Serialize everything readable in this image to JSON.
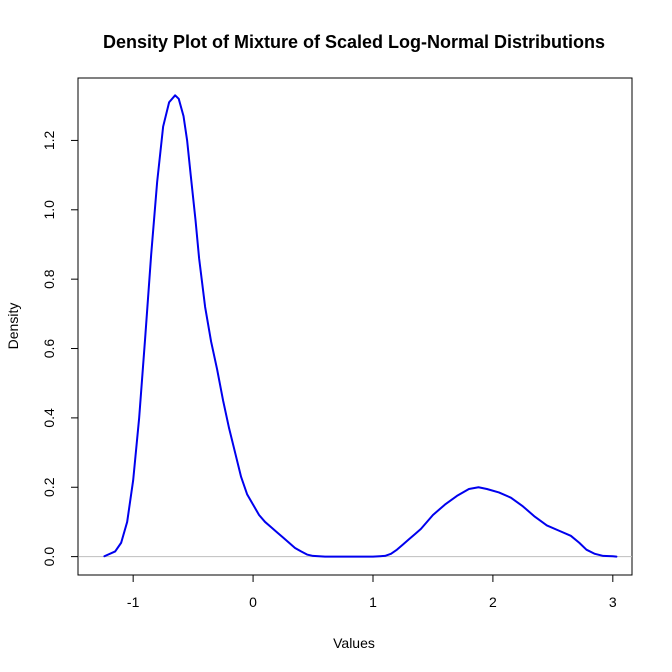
{
  "chart_data": {
    "type": "line",
    "title": "Density Plot of Mixture of Scaled Log-Normal Distributions",
    "xlabel": "Values",
    "ylabel": "Density",
    "xlim": [
      -1.46,
      3.16
    ],
    "ylim": [
      -0.053,
      1.38
    ],
    "x_ticks": [
      -1,
      0,
      1,
      2,
      3
    ],
    "y_ticks": [
      0.0,
      0.2,
      0.4,
      0.6,
      0.8,
      1.0,
      1.2
    ],
    "x_tick_labels": [
      "-1",
      "0",
      "1",
      "2",
      "3"
    ],
    "y_tick_labels": [
      "0.0",
      "0.2",
      "0.4",
      "0.6",
      "0.8",
      "1.0",
      "1.2"
    ],
    "grid": false,
    "baseline": 0,
    "colors": {
      "line": "#0000ee",
      "baseline": "#bebebe",
      "axis": "#000000"
    },
    "series": [
      {
        "x": [
          -1.24,
          -1.15,
          -1.1,
          -1.05,
          -1.0,
          -0.95,
          -0.9,
          -0.85,
          -0.8,
          -0.75,
          -0.7,
          -0.65,
          -0.62,
          -0.58,
          -0.55,
          -0.52,
          -0.48,
          -0.45,
          -0.4,
          -0.35,
          -0.3,
          -0.25,
          -0.2,
          -0.15,
          -0.1,
          -0.05,
          0.0,
          0.05,
          0.1,
          0.15,
          0.2,
          0.25,
          0.3,
          0.35,
          0.4,
          0.45,
          0.5,
          0.55,
          0.6,
          0.7,
          0.8,
          0.9,
          1.0,
          1.1,
          1.15,
          1.2,
          1.25,
          1.3,
          1.35,
          1.4,
          1.5,
          1.6,
          1.7,
          1.8,
          1.88,
          1.95,
          2.05,
          2.15,
          2.25,
          2.35,
          2.45,
          2.55,
          2.65,
          2.72,
          2.78,
          2.85,
          2.92,
          3.0,
          3.03
        ],
        "y": [
          0.001,
          0.015,
          0.04,
          0.1,
          0.22,
          0.4,
          0.63,
          0.87,
          1.08,
          1.24,
          1.31,
          1.33,
          1.32,
          1.27,
          1.2,
          1.1,
          0.97,
          0.86,
          0.72,
          0.62,
          0.54,
          0.45,
          0.37,
          0.3,
          0.23,
          0.18,
          0.15,
          0.12,
          0.1,
          0.085,
          0.07,
          0.055,
          0.04,
          0.025,
          0.015,
          0.006,
          0.002,
          0.001,
          0.0,
          0.0,
          0.0,
          0.0,
          0.0,
          0.002,
          0.008,
          0.02,
          0.035,
          0.05,
          0.065,
          0.08,
          0.12,
          0.15,
          0.175,
          0.195,
          0.2,
          0.195,
          0.185,
          0.17,
          0.145,
          0.115,
          0.09,
          0.075,
          0.06,
          0.04,
          0.02,
          0.008,
          0.002,
          0.001,
          0.0
        ]
      }
    ]
  }
}
